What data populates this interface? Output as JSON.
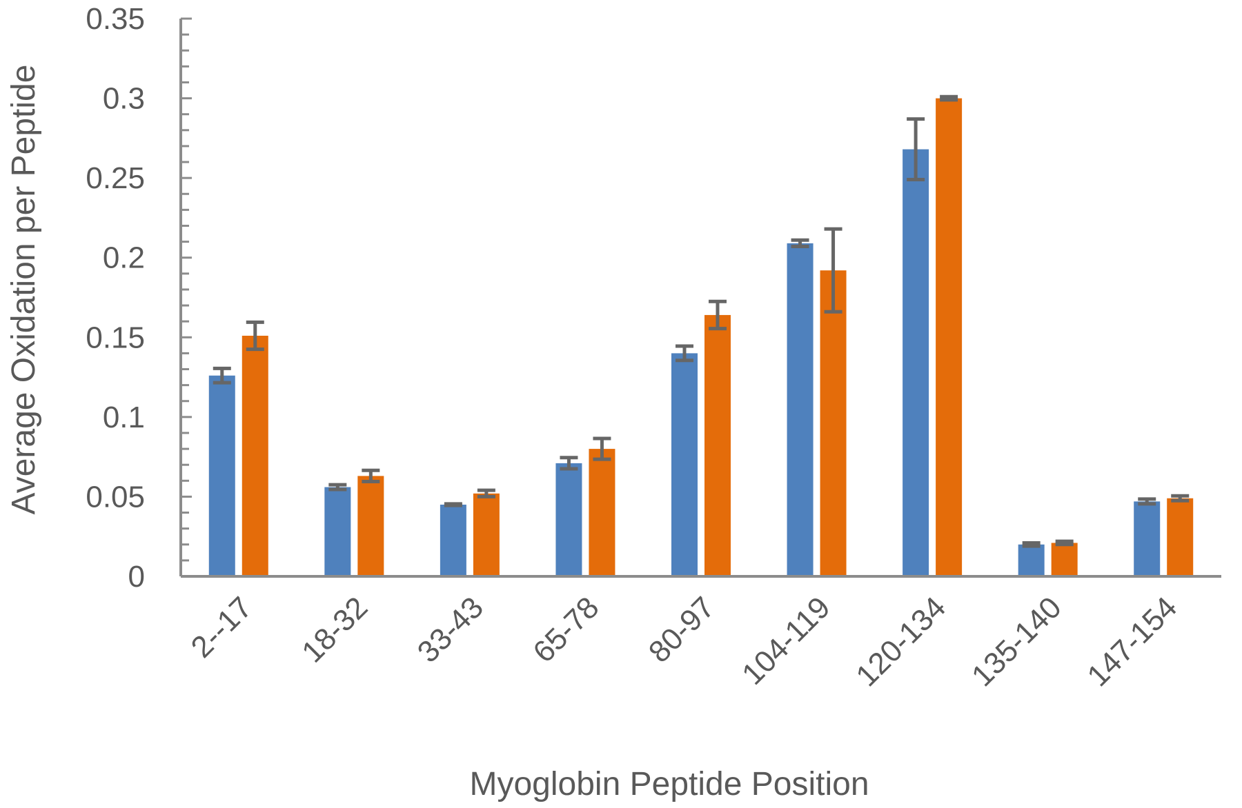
{
  "chart_data": {
    "type": "bar",
    "title": "",
    "xlabel": "Myoglobin Peptide Position",
    "ylabel": "Average Oxidation per Peptide",
    "ylim": [
      0,
      0.35
    ],
    "y_major_step": 0.05,
    "y_minor_step": 0.01,
    "y_ticks": [
      "0",
      "0.05",
      "0.1",
      "0.15",
      "0.2",
      "0.25",
      "0.3",
      "0.35"
    ],
    "categories": [
      "2--17",
      "18-32",
      "33-43",
      "65-78",
      "80-97",
      "104-119",
      "120-134",
      "135-140",
      "147-154"
    ],
    "series": [
      {
        "color": "#4f81bd",
        "values": [
          0.126,
          0.056,
          0.045,
          0.071,
          0.14,
          0.209,
          0.268,
          0.02,
          0.047
        ],
        "errors": [
          0.0045,
          0.0015,
          0.0005,
          0.0035,
          0.0045,
          0.002,
          0.019,
          0.001,
          0.0015
        ]
      },
      {
        "color": "#e46c0a",
        "values": [
          0.151,
          0.063,
          0.052,
          0.08,
          0.164,
          0.192,
          0.3,
          0.021,
          0.049
        ],
        "errors": [
          0.0085,
          0.0035,
          0.002,
          0.0065,
          0.0085,
          0.026,
          0.001,
          0.001,
          0.0015
        ]
      }
    ],
    "error_bar_color": "#666666",
    "grid": false,
    "legend": "none"
  }
}
